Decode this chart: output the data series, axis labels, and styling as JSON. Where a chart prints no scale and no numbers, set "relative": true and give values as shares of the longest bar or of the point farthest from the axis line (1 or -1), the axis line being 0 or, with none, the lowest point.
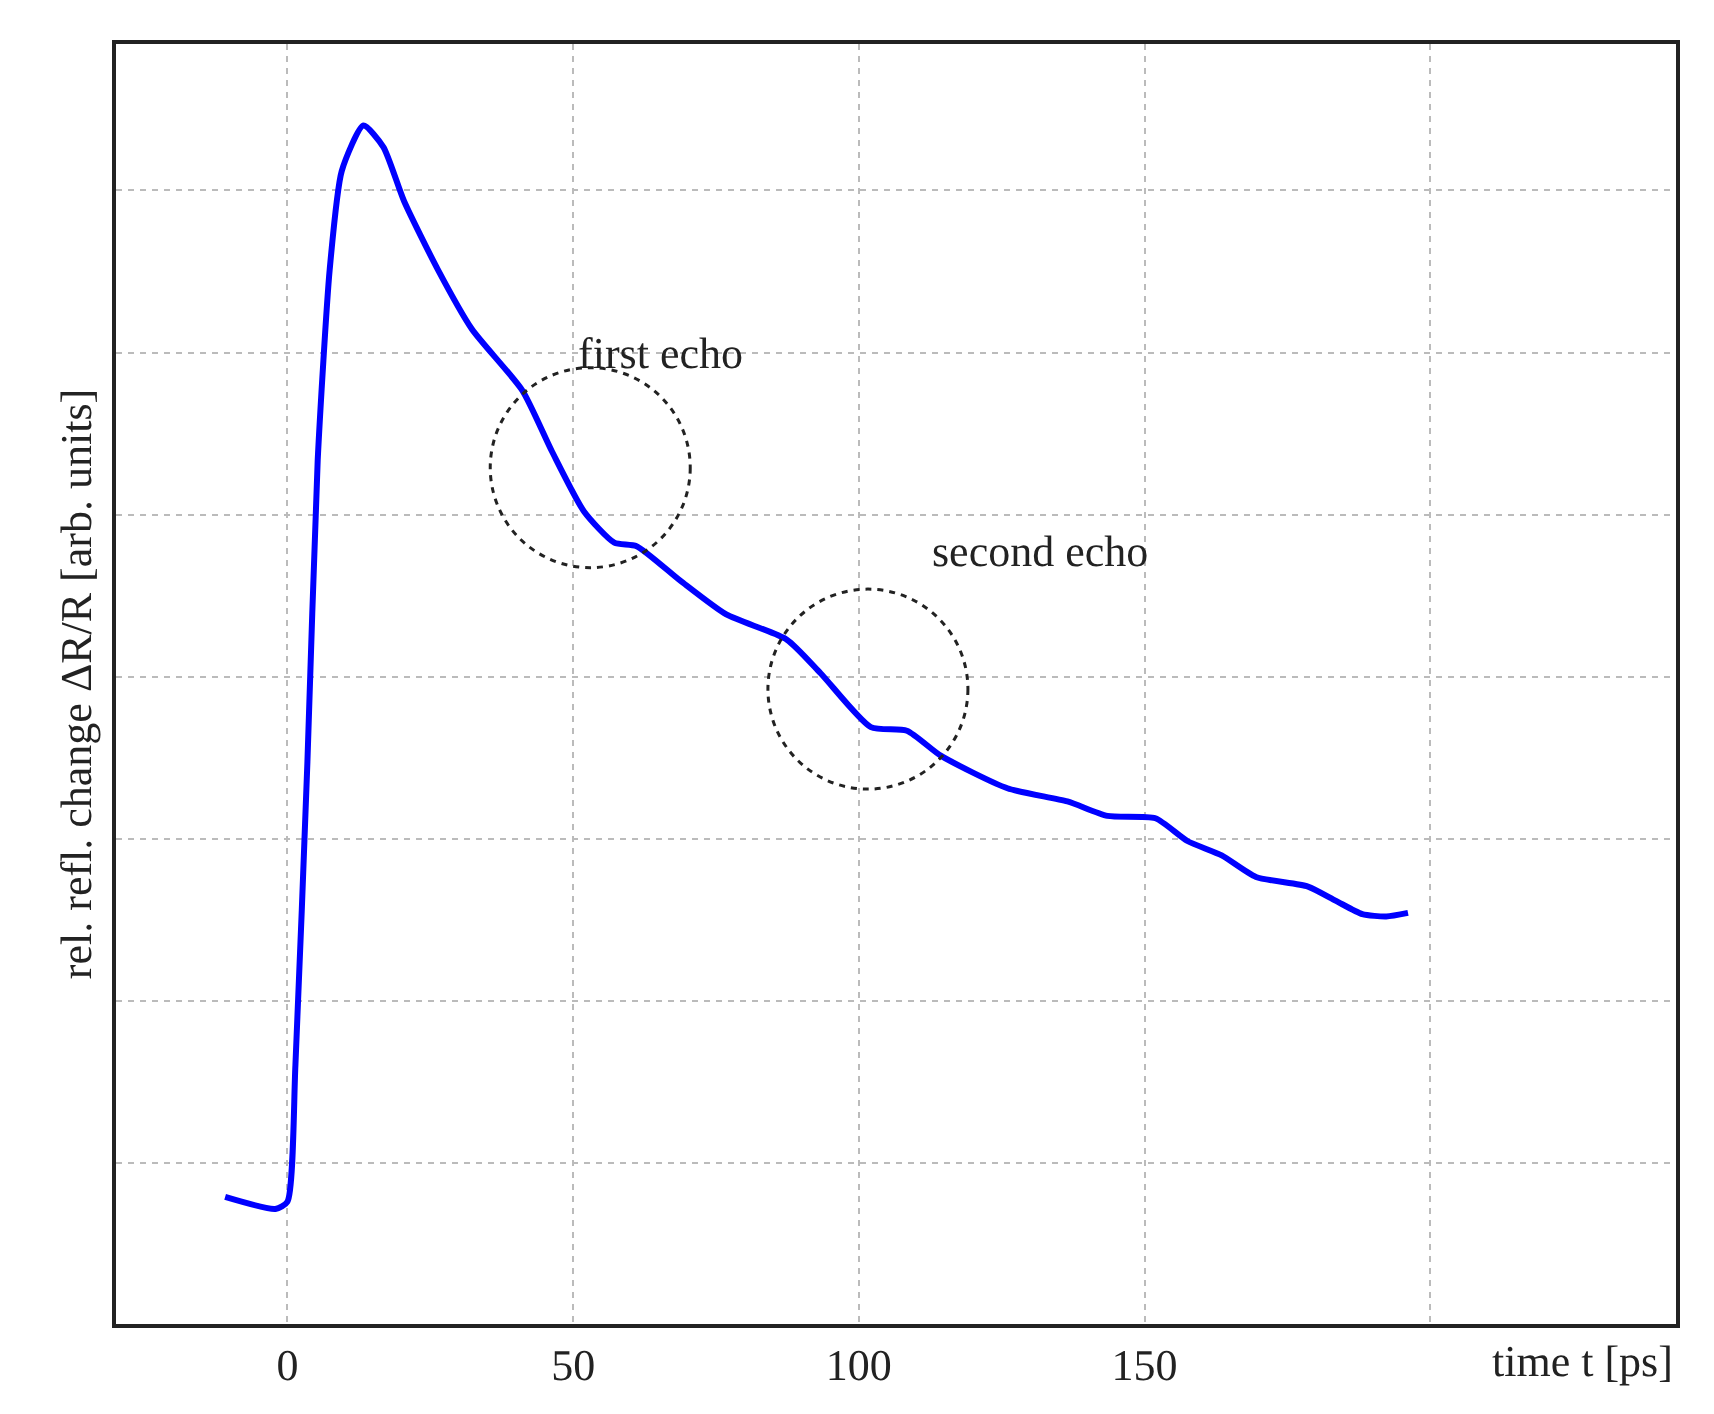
{
  "chart_data": {
    "type": "line",
    "relative": true,
    "xlabel": "time t [ps]",
    "ylabel": "rel. refl. change ΔR/R [arb. units]",
    "xlim": [
      -30,
      243
    ],
    "xticks": [
      0,
      50,
      100,
      150,
      {
        "value": 200,
        "label": null
      }
    ],
    "grid": true,
    "marker": "none",
    "line_style": "solid",
    "x": [
      -10.9,
      -2.1,
      0.0,
      1.4,
      3.5,
      5.3,
      7.4,
      9.5,
      13.3,
      16.8,
      20.4,
      26.3,
      32.3,
      41.1,
      46.3,
      51.9,
      57.2,
      61.1,
      68.8,
      76.8,
      87.4,
      93.3,
      102.1,
      108.4,
      114.4,
      126.0,
      136.5,
      143.5,
      151.9,
      157.5,
      163.5,
      169.5,
      178.6,
      183.5,
      188.1,
      192.3,
      196.1
    ],
    "series": [
      {
        "color": "#0000ff",
        "values": [
          0.106,
          0.096,
          0.102,
          0.216,
          0.469,
          0.721,
          0.88,
          0.962,
          1.0,
          0.982,
          0.937,
          0.88,
          0.83,
          0.779,
          0.728,
          0.678,
          0.652,
          0.649,
          0.62,
          0.592,
          0.571,
          0.543,
          0.498,
          0.495,
          0.474,
          0.447,
          0.436,
          0.424,
          0.422,
          0.403,
          0.391,
          0.373,
          0.365,
          0.353,
          0.342,
          0.34,
          0.343
        ]
      }
    ],
    "annotations": [
      "first echo",
      "second echo"
    ]
  }
}
